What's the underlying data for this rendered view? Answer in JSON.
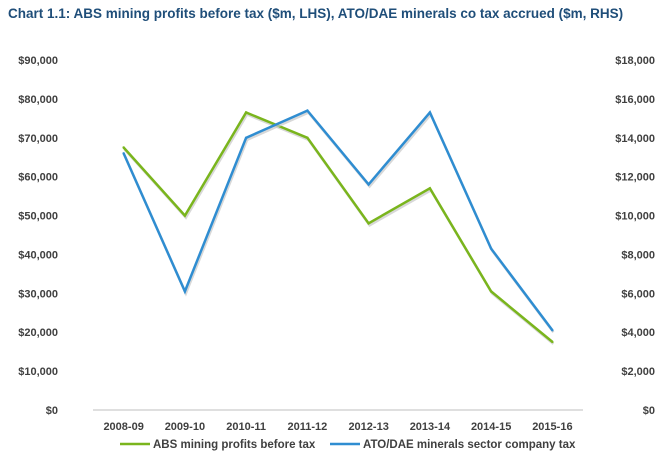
{
  "chart_data": {
    "type": "line",
    "title": "Chart 1.1: ABS mining profits before tax ($m, LHS), ATO/DAE minerals co tax accrued  ($m, RHS)",
    "categories": [
      "2008-09",
      "2009-10",
      "2010-11",
      "2011-12",
      "2012-13",
      "2013-14",
      "2014-15",
      "2015-16"
    ],
    "left_axis": {
      "ylim": [
        0,
        90000
      ],
      "ticks": [
        0,
        10000,
        20000,
        30000,
        40000,
        50000,
        60000,
        70000,
        80000,
        90000
      ],
      "tick_labels": [
        "$0",
        "$10,000",
        "$20,000",
        "$30,000",
        "$40,000",
        "$50,000",
        "$60,000",
        "$70,000",
        "$80,000",
        "$90,000"
      ]
    },
    "right_axis": {
      "ylim": [
        0,
        18000
      ],
      "ticks": [
        0,
        2000,
        4000,
        6000,
        8000,
        10000,
        12000,
        14000,
        16000,
        18000
      ],
      "tick_labels": [
        "$0",
        "$2,000",
        "$4,000",
        "$6,000",
        "$8,000",
        "$10,000",
        "$12,000",
        "$14,000",
        "$16,000",
        "$18,000"
      ]
    },
    "grid": false,
    "legend_position": "bottom",
    "series": [
      {
        "name": "ABS mining profits before tax",
        "axis": "left",
        "color": "#7ab51d",
        "values": [
          67500,
          50000,
          76500,
          70000,
          48000,
          57000,
          30500,
          17500
        ]
      },
      {
        "name": "ATO/DAE minerals sector company tax",
        "axis": "right",
        "color": "#2f8dd1",
        "values": [
          13200,
          6100,
          14000,
          15400,
          11600,
          15300,
          8300,
          4100
        ]
      }
    ]
  }
}
